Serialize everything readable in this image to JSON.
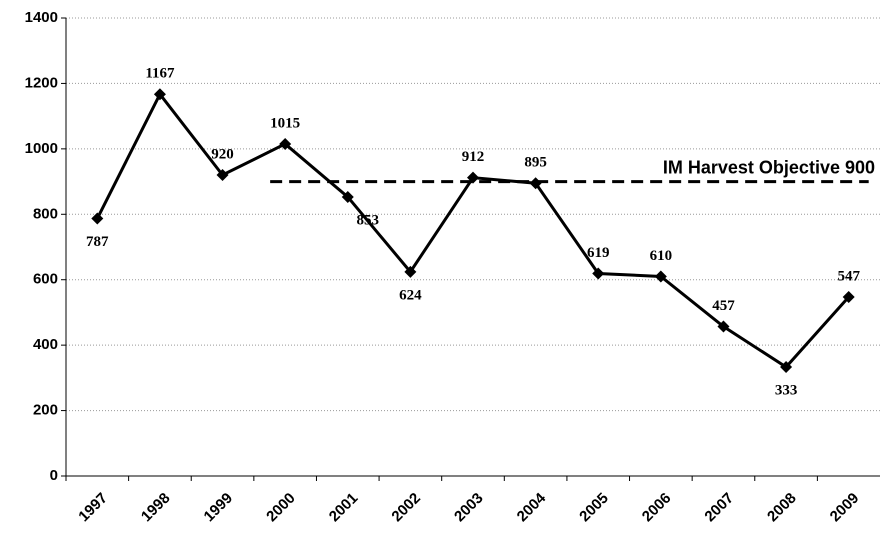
{
  "chart_data": {
    "type": "line",
    "categories": [
      "1997",
      "1998",
      "1999",
      "2000",
      "2001",
      "2002",
      "2003",
      "2004",
      "2005",
      "2006",
      "2007",
      "2008",
      "2009"
    ],
    "series": [
      {
        "color": "#000000",
        "values": [
          787,
          1167,
          920,
          1015,
          853,
          624,
          912,
          895,
          619,
          610,
          457,
          333,
          547
        ]
      }
    ],
    "ylim": [
      0,
      1400
    ],
    "yticks": [
      0,
      200,
      400,
      600,
      800,
      1000,
      1200,
      1400
    ],
    "grid": true,
    "reference_line": {
      "value": 900,
      "label": "IM Harvest Objective 900",
      "from": "2000",
      "to": "2009"
    }
  }
}
